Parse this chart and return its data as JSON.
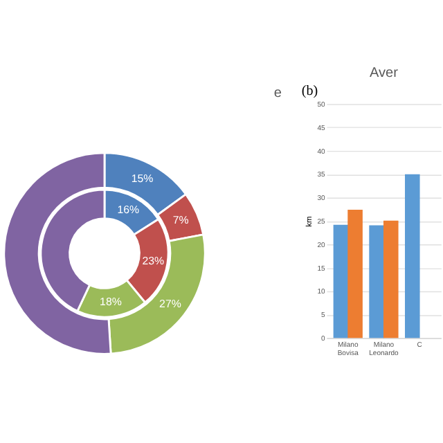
{
  "chart_data": [
    {
      "type": "donut",
      "title": "e",
      "categories": [
        null,
        null,
        null,
        null
      ],
      "colors": [
        "#4f81bd",
        "#c0504d",
        "#9bbb59",
        "#8064a2"
      ],
      "series": [
        {
          "values": [
            15,
            7,
            27,
            51
          ],
          "value_labels": [
            "15%",
            "7%",
            "27%",
            null
          ]
        },
        {
          "values": [
            16,
            23,
            18,
            43
          ],
          "value_labels": [
            "16%",
            "23%",
            "18%",
            null
          ]
        }
      ]
    },
    {
      "type": "bar",
      "title": "Aver",
      "annotations": [
        "(b)"
      ],
      "ylabel": "km",
      "categories": [
        "Milano Bovisa",
        "Milano Leonardo",
        "C"
      ],
      "ylim": [
        0,
        50
      ],
      "yticks": [
        0,
        5,
        10,
        15,
        20,
        25,
        30,
        35,
        40,
        45,
        50
      ],
      "grid": "y",
      "series": [
        {
          "color": "#5b9bd5",
          "values": [
            24.2,
            24.1,
            35
          ]
        },
        {
          "color": "#ed7d31",
          "values": [
            27.4,
            25.1,
            null
          ]
        }
      ]
    }
  ]
}
